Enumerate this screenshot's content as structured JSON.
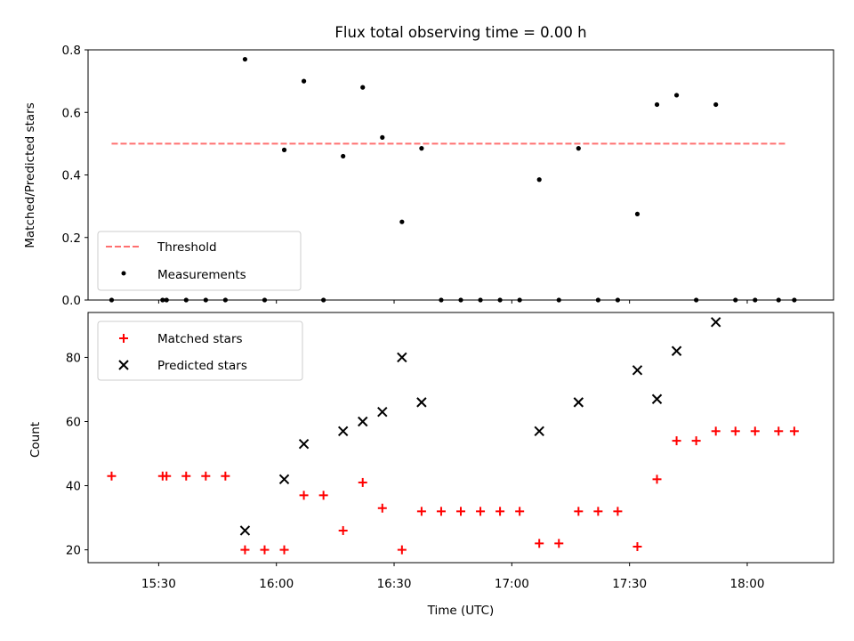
{
  "chart_data": [
    {
      "type": "scatter",
      "title": "Flux total observing time = 0.00 h",
      "ylabel": "Matched/Predicted stars",
      "ylim": [
        0,
        0.8
      ],
      "yticks": [
        "0.0",
        "0.2",
        "0.4",
        "0.6",
        "0.8"
      ],
      "xlim": [
        "15:12",
        "18:22"
      ],
      "grid": false,
      "legend_position": "lower-left",
      "threshold": {
        "name": "Threshold",
        "value": 0.5,
        "x_range": [
          "15:18",
          "18:10"
        ],
        "color": "#ff7070"
      },
      "series": [
        {
          "name": "Measurements",
          "points": [
            [
              "15:18",
              0.0
            ],
            [
              "15:31",
              0.0
            ],
            [
              "15:32",
              0.0
            ],
            [
              "15:37",
              0.0
            ],
            [
              "15:42",
              0.0
            ],
            [
              "15:47",
              0.0
            ],
            [
              "15:52",
              0.77
            ],
            [
              "15:57",
              0.0
            ],
            [
              "16:02",
              0.48
            ],
            [
              "16:07",
              0.7
            ],
            [
              "16:12",
              0.0
            ],
            [
              "16:17",
              0.46
            ],
            [
              "16:22",
              0.68
            ],
            [
              "16:27",
              0.52
            ],
            [
              "16:32",
              0.25
            ],
            [
              "16:37",
              0.485
            ],
            [
              "16:42",
              0.0
            ],
            [
              "16:47",
              0.0
            ],
            [
              "16:52",
              0.0
            ],
            [
              "16:57",
              0.0
            ],
            [
              "17:02",
              0.0
            ],
            [
              "17:07",
              0.385
            ],
            [
              "17:12",
              0.0
            ],
            [
              "17:17",
              0.485
            ],
            [
              "17:22",
              0.0
            ],
            [
              "17:27",
              0.0
            ],
            [
              "17:32",
              0.275
            ],
            [
              "17:37",
              0.625
            ],
            [
              "17:42",
              0.655
            ],
            [
              "17:47",
              0.0
            ],
            [
              "17:52",
              0.625
            ],
            [
              "17:57",
              0.0
            ],
            [
              "18:02",
              0.0
            ],
            [
              "18:08",
              0.0
            ],
            [
              "18:12",
              0.0
            ]
          ]
        }
      ]
    },
    {
      "type": "scatter",
      "ylabel": "Count",
      "xlabel": "Time (UTC)",
      "ylim": [
        16,
        94
      ],
      "yticks": [
        "20",
        "40",
        "60",
        "80"
      ],
      "xticks": [
        "15:30",
        "16:00",
        "16:30",
        "17:00",
        "17:30",
        "18:00"
      ],
      "xlim": [
        "15:12",
        "18:22"
      ],
      "grid": false,
      "legend_position": "upper-left",
      "series": [
        {
          "name": "Matched stars",
          "color": "#ff0000",
          "marker": "plus",
          "points": [
            [
              "15:18",
              43
            ],
            [
              "15:31",
              43
            ],
            [
              "15:32",
              43
            ],
            [
              "15:37",
              43
            ],
            [
              "15:42",
              43
            ],
            [
              "15:47",
              43
            ],
            [
              "15:52",
              20
            ],
            [
              "15:57",
              20
            ],
            [
              "16:02",
              20
            ],
            [
              "16:07",
              37
            ],
            [
              "16:12",
              37
            ],
            [
              "16:17",
              26
            ],
            [
              "16:22",
              41
            ],
            [
              "16:27",
              33
            ],
            [
              "16:32",
              20
            ],
            [
              "16:37",
              32
            ],
            [
              "16:42",
              32
            ],
            [
              "16:47",
              32
            ],
            [
              "16:52",
              32
            ],
            [
              "16:57",
              32
            ],
            [
              "17:02",
              32
            ],
            [
              "17:07",
              22
            ],
            [
              "17:12",
              22
            ],
            [
              "17:17",
              32
            ],
            [
              "17:22",
              32
            ],
            [
              "17:27",
              32
            ],
            [
              "17:32",
              21
            ],
            [
              "17:37",
              42
            ],
            [
              "17:42",
              54
            ],
            [
              "17:47",
              54
            ],
            [
              "17:52",
              57
            ],
            [
              "17:57",
              57
            ],
            [
              "18:02",
              57
            ],
            [
              "18:08",
              57
            ],
            [
              "18:12",
              57
            ]
          ]
        },
        {
          "name": "Predicted stars",
          "color": "#000000",
          "marker": "x",
          "points": [
            [
              "15:52",
              26
            ],
            [
              "16:02",
              42
            ],
            [
              "16:07",
              53
            ],
            [
              "16:17",
              57
            ],
            [
              "16:22",
              60
            ],
            [
              "16:27",
              63
            ],
            [
              "16:32",
              80
            ],
            [
              "16:37",
              66
            ],
            [
              "17:07",
              57
            ],
            [
              "17:17",
              66
            ],
            [
              "17:32",
              76
            ],
            [
              "17:37",
              67
            ],
            [
              "17:42",
              82
            ],
            [
              "17:52",
              91
            ]
          ]
        }
      ]
    }
  ]
}
